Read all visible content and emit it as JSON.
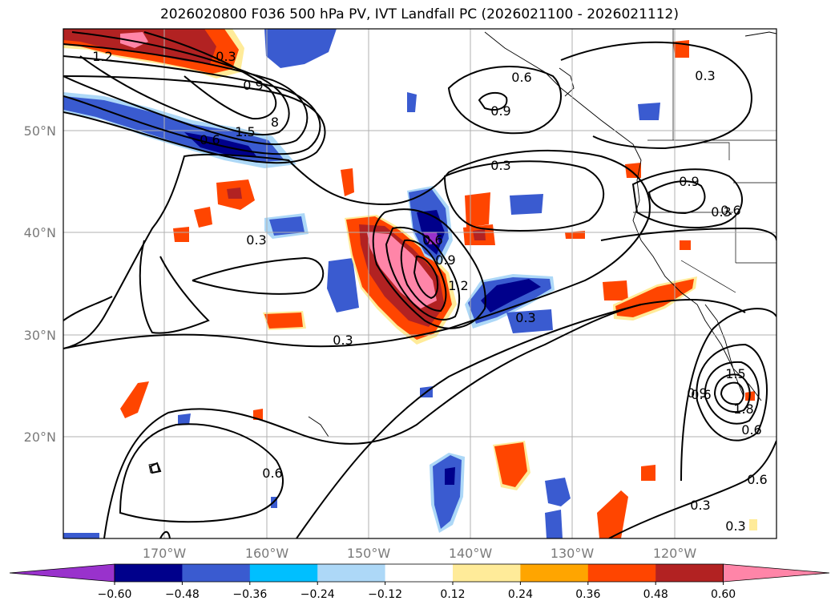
{
  "title": "2026020800 F036 500 hPa PV, IVT Landfall PC (2026021100 - 2026021112)",
  "lon_labels": [
    "170°W",
    "160°W",
    "150°W",
    "140°W",
    "130°W",
    "120°W"
  ],
  "lat_labels": [
    "50°N",
    "40°N",
    "30°N",
    "20°N"
  ],
  "colorbar": {
    "colors": [
      "#9932cc",
      "#00008b",
      "#3a5bd0",
      "#00bfff",
      "#add8f7",
      "#ffffff",
      "#ffeb99",
      "#ffa500",
      "#ff4500",
      "#b22222",
      "#ff85a8"
    ],
    "ticks": [
      "−0.60",
      "−0.48",
      "−0.36",
      "−0.24",
      "−0.12",
      "0.12",
      "0.24",
      "0.36",
      "0.48",
      "0.60"
    ]
  },
  "contour_labels": [
    "1.2",
    "0.3",
    "0.9",
    "8",
    "1.5",
    "0.6",
    "0.3",
    "0.6",
    "0.9",
    "0.3",
    "0.9",
    "0.6",
    "0.3",
    "0.6",
    "0.9",
    "1.2",
    "0.3",
    "0.3",
    "0.6",
    "0.6",
    "1.5",
    "1.8",
    "0.9",
    "0.6",
    "0.3",
    "0.3",
    "0.6",
    "0.3"
  ]
}
